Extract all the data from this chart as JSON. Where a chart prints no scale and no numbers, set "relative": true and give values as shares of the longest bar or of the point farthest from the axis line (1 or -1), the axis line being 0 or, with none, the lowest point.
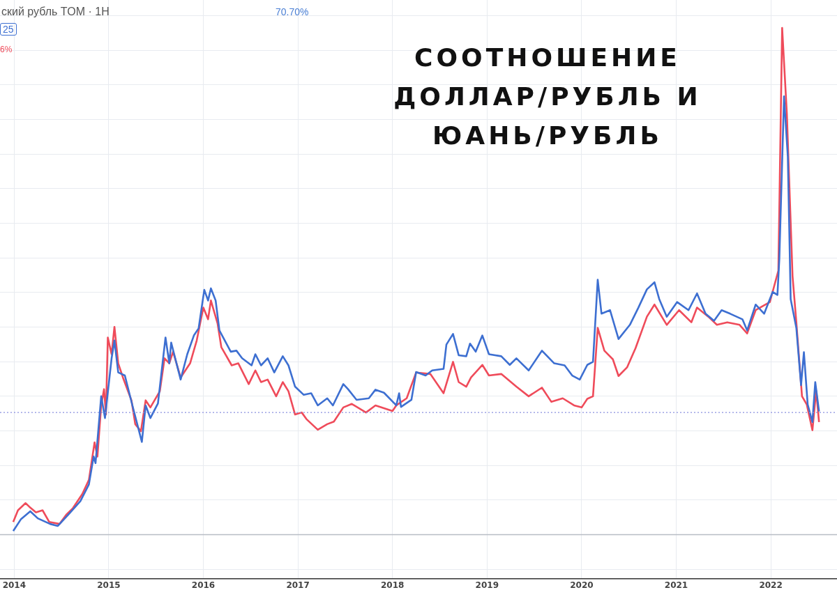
{
  "chart_data": {
    "type": "line",
    "title": "СООТНОШЕНИЕ ДОЛЛАР/РУБЛЬ И ЮАНЬ/РУБЛЬ",
    "relative": true,
    "grid": true,
    "xlim": [
      2013.85,
      2022.7
    ],
    "xticks": [
      2014,
      2015,
      2016,
      2017,
      2018,
      2019,
      2020,
      2021,
      2022
    ],
    "annotations": [
      "ский рубль TOM · 1H",
      "70.70%",
      "25",
      "6%"
    ],
    "ref_lines": [
      {
        "axis": "y",
        "value": 0.241,
        "label": null,
        "color": "#8a8fe0",
        "line_style": "dotted"
      }
    ],
    "series": [
      {
        "color": "#ef4b5a",
        "x": [
          2013.99,
          2014.04,
          2014.12,
          2014.16,
          2014.23,
          2014.3,
          2014.37,
          2014.48,
          2014.55,
          2014.62,
          2014.72,
          2014.79,
          2014.85,
          2014.88,
          2014.92,
          2014.95,
          2014.97,
          2014.99,
          2015.03,
          2015.06,
          2015.1,
          2015.15,
          2015.24,
          2015.28,
          2015.34,
          2015.39,
          2015.44,
          2015.54,
          2015.59,
          2015.64,
          2015.68,
          2015.76,
          2015.86,
          2015.93,
          2016.0,
          2016.05,
          2016.08,
          2016.15,
          2016.19,
          2016.3,
          2016.37,
          2016.48,
          2016.55,
          2016.61,
          2016.68,
          2016.77,
          2016.84,
          2016.9,
          2016.97,
          2017.04,
          2017.09,
          2017.21,
          2017.31,
          2017.38,
          2017.48,
          2017.57,
          2017.72,
          2017.82,
          2018.0,
          2018.04,
          2018.15,
          2018.25,
          2018.4,
          2018.54,
          2018.64,
          2018.7,
          2018.78,
          2018.83,
          2018.95,
          2019.02,
          2019.15,
          2019.31,
          2019.44,
          2019.58,
          2019.68,
          2019.8,
          2019.92,
          2020.0,
          2020.06,
          2020.12,
          2020.17,
          2020.24,
          2020.33,
          2020.39,
          2020.48,
          2020.57,
          2020.69,
          2020.77,
          2020.9,
          2021.03,
          2021.16,
          2021.22,
          2021.34,
          2021.43,
          2021.54,
          2021.67,
          2021.75,
          2021.84,
          2021.99,
          2022.08,
          2022.12,
          2022.17,
          2022.23,
          2022.27,
          2022.33,
          2022.38,
          2022.44,
          2022.48,
          2022.51
        ],
        "values": [
          0.025,
          0.048,
          0.062,
          0.055,
          0.044,
          0.048,
          0.025,
          0.021,
          0.039,
          0.052,
          0.08,
          0.108,
          0.182,
          0.154,
          0.255,
          0.287,
          0.237,
          0.389,
          0.356,
          0.41,
          0.338,
          0.31,
          0.265,
          0.218,
          0.204,
          0.265,
          0.251,
          0.283,
          0.348,
          0.338,
          0.361,
          0.31,
          0.338,
          0.383,
          0.448,
          0.425,
          0.462,
          0.417,
          0.37,
          0.334,
          0.338,
          0.297,
          0.324,
          0.301,
          0.306,
          0.273,
          0.301,
          0.283,
          0.237,
          0.241,
          0.228,
          0.207,
          0.218,
          0.223,
          0.251,
          0.258,
          0.241,
          0.255,
          0.244,
          0.255,
          0.269,
          0.32,
          0.317,
          0.279,
          0.341,
          0.301,
          0.292,
          0.31,
          0.335,
          0.314,
          0.317,
          0.292,
          0.273,
          0.29,
          0.262,
          0.269,
          0.255,
          0.251,
          0.268,
          0.273,
          0.408,
          0.363,
          0.346,
          0.313,
          0.33,
          0.368,
          0.43,
          0.454,
          0.414,
          0.443,
          0.419,
          0.448,
          0.43,
          0.414,
          0.419,
          0.414,
          0.397,
          0.443,
          0.459,
          0.521,
          1.0,
          0.83,
          0.51,
          0.419,
          0.273,
          0.257,
          0.206,
          0.284,
          0.222
        ]
      },
      {
        "color": "#3d6fd1",
        "x": [
          2013.99,
          2014.07,
          2014.17,
          2014.25,
          2014.38,
          2014.46,
          2014.57,
          2014.7,
          2014.79,
          2014.84,
          2014.86,
          2014.92,
          2014.96,
          2015.03,
          2015.06,
          2015.1,
          2015.17,
          2015.25,
          2015.35,
          2015.39,
          2015.44,
          2015.52,
          2015.6,
          2015.64,
          2015.66,
          2015.76,
          2015.83,
          2015.9,
          2015.95,
          2016.01,
          2016.05,
          2016.08,
          2016.13,
          2016.17,
          2016.29,
          2016.35,
          2016.41,
          2016.51,
          2016.55,
          2016.61,
          2016.68,
          2016.75,
          2016.84,
          2016.9,
          2016.97,
          2017.06,
          2017.14,
          2017.21,
          2017.31,
          2017.37,
          2017.48,
          2017.53,
          2017.62,
          2017.75,
          2017.82,
          2017.91,
          2018.04,
          2018.07,
          2018.09,
          2018.2,
          2018.25,
          2018.35,
          2018.42,
          2018.54,
          2018.57,
          2018.64,
          2018.7,
          2018.78,
          2018.82,
          2018.88,
          2018.95,
          2019.02,
          2019.15,
          2019.24,
          2019.31,
          2019.44,
          2019.58,
          2019.71,
          2019.82,
          2019.9,
          2019.98,
          2020.06,
          2020.12,
          2020.17,
          2020.21,
          2020.3,
          2020.39,
          2020.51,
          2020.6,
          2020.69,
          2020.77,
          2020.82,
          2020.9,
          2021.01,
          2021.13,
          2021.22,
          2021.31,
          2021.4,
          2021.48,
          2021.57,
          2021.7,
          2021.75,
          2021.84,
          2021.93,
          2022.02,
          2022.07,
          2022.09,
          2022.14,
          2022.18,
          2022.21,
          2022.27,
          2022.32,
          2022.35,
          2022.39,
          2022.44,
          2022.47,
          2022.51
        ],
        "values": [
          0.007,
          0.03,
          0.046,
          0.032,
          0.021,
          0.017,
          0.039,
          0.066,
          0.099,
          0.154,
          0.141,
          0.273,
          0.23,
          0.348,
          0.383,
          0.32,
          0.314,
          0.255,
          0.183,
          0.255,
          0.23,
          0.259,
          0.389,
          0.338,
          0.379,
          0.306,
          0.356,
          0.393,
          0.407,
          0.483,
          0.462,
          0.486,
          0.462,
          0.403,
          0.361,
          0.363,
          0.348,
          0.334,
          0.356,
          0.334,
          0.348,
          0.32,
          0.352,
          0.334,
          0.292,
          0.276,
          0.279,
          0.255,
          0.269,
          0.255,
          0.297,
          0.287,
          0.266,
          0.269,
          0.286,
          0.28,
          0.255,
          0.279,
          0.252,
          0.266,
          0.321,
          0.314,
          0.324,
          0.327,
          0.375,
          0.396,
          0.354,
          0.352,
          0.377,
          0.361,
          0.393,
          0.356,
          0.352,
          0.335,
          0.348,
          0.324,
          0.363,
          0.338,
          0.334,
          0.314,
          0.306,
          0.335,
          0.341,
          0.503,
          0.436,
          0.443,
          0.386,
          0.414,
          0.448,
          0.484,
          0.498,
          0.465,
          0.43,
          0.459,
          0.443,
          0.476,
          0.436,
          0.422,
          0.443,
          0.436,
          0.425,
          0.403,
          0.454,
          0.436,
          0.479,
          0.473,
          0.543,
          0.865,
          0.746,
          0.465,
          0.408,
          0.295,
          0.36,
          0.257,
          0.222,
          0.301,
          0.243
        ]
      }
    ]
  }
}
